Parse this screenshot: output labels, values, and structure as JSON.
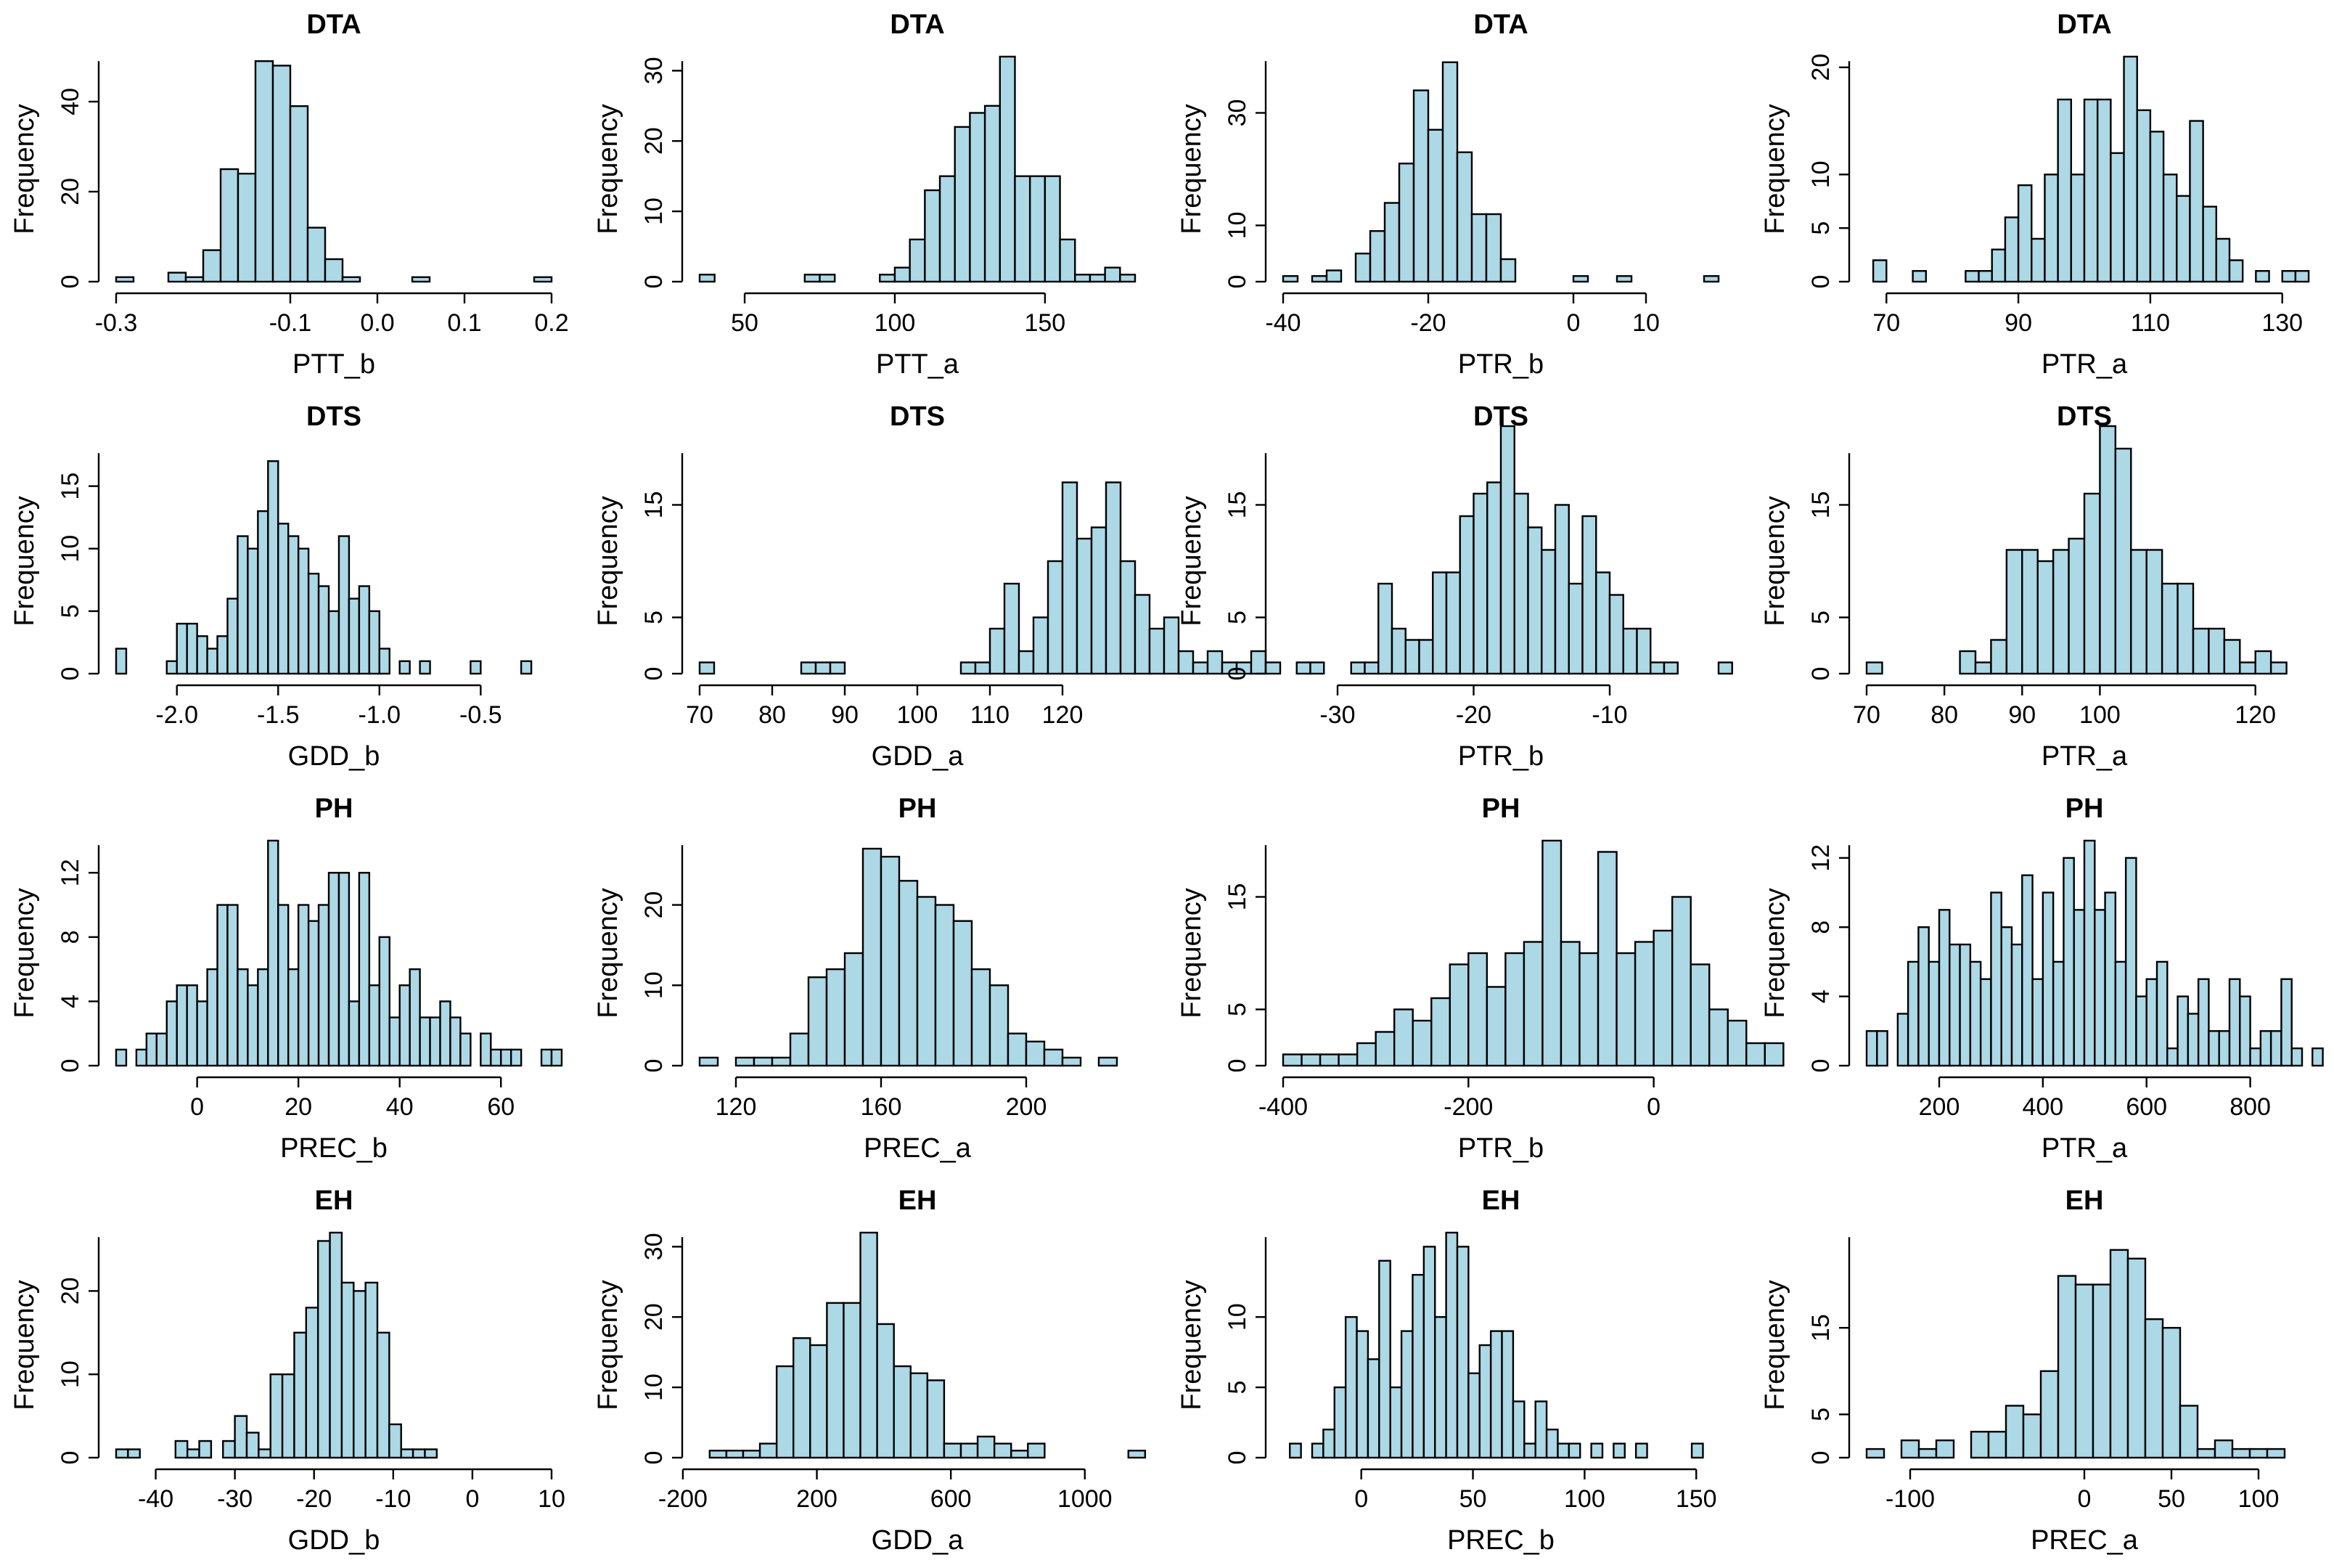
{
  "chart_data": [
    {
      "type": "bar",
      "title": "DTA",
      "xlabel": "PTT_b",
      "ylabel": "Frequency",
      "xlim": [
        -0.3,
        0.2
      ],
      "xticks": [
        "-0.3",
        "-0.1",
        "0.0",
        "0.1",
        "0.2"
      ],
      "xtick_values": [
        -0.3,
        -0.1,
        0.0,
        0.1,
        0.2
      ],
      "ylim": [
        0,
        50
      ],
      "yticks": [
        "0",
        "20",
        "40"
      ],
      "ytick_values": [
        0,
        20,
        40
      ],
      "bins": {
        "start": -0.3,
        "width": 0.02
      },
      "values": [
        1,
        0,
        0,
        2,
        1,
        7,
        25,
        24,
        49,
        48,
        39,
        12,
        5,
        1,
        0,
        0,
        0,
        1,
        0,
        0,
        0,
        0,
        0,
        0,
        1
      ]
    },
    {
      "type": "bar",
      "title": "DTA",
      "xlabel": "PTT_a",
      "ylabel": "Frequency",
      "xlim": [
        35,
        180
      ],
      "xticks": [
        "50",
        "100",
        "150"
      ],
      "xtick_values": [
        50,
        100,
        150
      ],
      "ylim": [
        0,
        32
      ],
      "yticks": [
        "0",
        "10",
        "20",
        "30"
      ],
      "ytick_values": [
        0,
        10,
        20,
        30
      ],
      "bins": {
        "start": 35,
        "width": 5
      },
      "values": [
        1,
        0,
        0,
        0,
        0,
        0,
        0,
        1,
        1,
        0,
        0,
        0,
        1,
        2,
        6,
        13,
        15,
        22,
        24,
        25,
        32,
        15,
        15,
        15,
        6,
        1,
        1,
        2,
        1,
        0
      ]
    },
    {
      "type": "bar",
      "title": "DTA",
      "xlabel": "PTR_b",
      "ylabel": "Frequency",
      "xlim": [
        -40,
        20
      ],
      "xticks": [
        "-40",
        "-20",
        "0",
        "10"
      ],
      "xtick_values": [
        -40,
        -20,
        0,
        10
      ],
      "ylim": [
        0,
        40
      ],
      "yticks": [
        "0",
        "10",
        "30"
      ],
      "ytick_values": [
        0,
        10,
        30
      ],
      "bins": {
        "start": -40,
        "width": 2
      },
      "values": [
        1,
        0,
        1,
        2,
        0,
        5,
        9,
        14,
        21,
        34,
        27,
        39,
        23,
        12,
        12,
        4,
        0,
        0,
        0,
        0,
        1,
        0,
        0,
        1,
        0,
        0,
        0,
        0,
        0,
        1
      ]
    },
    {
      "type": "bar",
      "title": "DTA",
      "xlabel": "PTR_a",
      "ylabel": "Frequency",
      "xlim": [
        67,
        133
      ],
      "xticks": [
        "70",
        "90",
        "110",
        "130"
      ],
      "xtick_values": [
        70,
        90,
        110,
        130
      ],
      "ylim": [
        0,
        21
      ],
      "yticks": [
        "0",
        "5",
        "10",
        "20"
      ],
      "ytick_values": [
        0,
        5,
        10,
        20
      ],
      "bins": {
        "start": 68,
        "width": 2
      },
      "values": [
        2,
        0,
        0,
        1,
        0,
        0,
        0,
        1,
        1,
        3,
        6,
        9,
        4,
        10,
        17,
        10,
        17,
        17,
        12,
        21,
        16,
        14,
        10,
        8,
        15,
        7,
        4,
        2,
        0,
        1,
        0,
        1,
        1,
        0,
        0,
        0
      ]
    },
    {
      "type": "bar",
      "title": "DTS",
      "xlabel": "GDD_b",
      "ylabel": "Frequency",
      "xlim": [
        -2.3,
        -0.15
      ],
      "xticks": [
        "-2.0",
        "-1.5",
        "-1.0",
        "-0.5"
      ],
      "xtick_values": [
        -2.0,
        -1.5,
        -1.0,
        -0.5
      ],
      "ylim": [
        0,
        18
      ],
      "yticks": [
        "0",
        "5",
        "10",
        "15"
      ],
      "ytick_values": [
        0,
        5,
        10,
        15
      ],
      "bins": {
        "start": -2.3,
        "width": 0.05
      },
      "values": [
        2,
        0,
        0,
        0,
        0,
        1,
        4,
        4,
        3,
        2,
        3,
        6,
        11,
        10,
        13,
        17,
        12,
        11,
        10,
        8,
        7,
        5,
        11,
        6,
        7,
        5,
        2,
        0,
        1,
        0,
        1,
        0,
        0,
        0,
        0,
        1,
        0,
        0,
        0,
        0,
        1
      ]
    },
    {
      "type": "bar",
      "title": "DTS",
      "xlabel": "GDD_a",
      "ylabel": "Frequency",
      "xlim": [
        70,
        130
      ],
      "xticks": [
        "70",
        "80",
        "90",
        "100",
        "110",
        "120"
      ],
      "xtick_values": [
        70,
        80,
        90,
        100,
        110,
        120
      ],
      "ylim": [
        0,
        20
      ],
      "yticks": [
        "0",
        "5",
        "15"
      ],
      "ytick_values": [
        0,
        5,
        15
      ],
      "bins": {
        "start": 70,
        "width": 2
      },
      "values": [
        1,
        0,
        0,
        0,
        0,
        0,
        0,
        1,
        1,
        1,
        0,
        0,
        0,
        0,
        0,
        0,
        0,
        0,
        1,
        1,
        4,
        8,
        2,
        5,
        10,
        17,
        12,
        13,
        17,
        10,
        7,
        4,
        5,
        2,
        1,
        2,
        1,
        1,
        2,
        1
      ]
    },
    {
      "type": "bar",
      "title": "DTS",
      "xlabel": "PTR_b",
      "ylabel": "Frequency",
      "xlim": [
        -34,
        -2
      ],
      "xticks": [
        "-30",
        "-20",
        "-10"
      ],
      "xtick_values": [
        -30,
        -20,
        -10
      ],
      "ylim": [
        0,
        20
      ],
      "yticks": [
        "0",
        "5",
        "15"
      ],
      "ytick_values": [
        0,
        5,
        15
      ],
      "bins": {
        "start": -33,
        "width": 1
      },
      "values": [
        1,
        1,
        0,
        0,
        1,
        1,
        8,
        4,
        3,
        3,
        9,
        9,
        14,
        16,
        17,
        22,
        16,
        13,
        11,
        15,
        8,
        14,
        9,
        7,
        4,
        4,
        1,
        1,
        0,
        0,
        0,
        1
      ]
    },
    {
      "type": "bar",
      "title": "DTS",
      "xlabel": "PTR_a",
      "ylabel": "Frequency",
      "xlim": [
        70,
        126
      ],
      "xticks": [
        "70",
        "80",
        "90",
        "100",
        "120"
      ],
      "xtick_values": [
        70,
        80,
        90,
        100,
        120
      ],
      "ylim": [
        0,
        20
      ],
      "yticks": [
        "0",
        "5",
        "15"
      ],
      "ytick_values": [
        0,
        5,
        15
      ],
      "bins": {
        "start": 70,
        "width": 2
      },
      "values": [
        1,
        0,
        0,
        0,
        0,
        0,
        2,
        1,
        3,
        11,
        11,
        10,
        11,
        12,
        16,
        22,
        20,
        11,
        11,
        8,
        8,
        4,
        4,
        3,
        1,
        2,
        1
      ]
    },
    {
      "type": "bar",
      "title": "PH",
      "xlabel": "PREC_b",
      "ylabel": "Frequency",
      "xlim": [
        -16,
        70
      ],
      "xticks": [
        "0",
        "20",
        "40",
        "60"
      ],
      "xtick_values": [
        0,
        20,
        40,
        60
      ],
      "ylim": [
        0,
        14
      ],
      "yticks": [
        "0",
        "4",
        "8",
        "12"
      ],
      "ytick_values": [
        0,
        4,
        8,
        12
      ],
      "bins": {
        "start": -16,
        "width": 2
      },
      "values": [
        1,
        0,
        1,
        2,
        2,
        4,
        5,
        5,
        4,
        6,
        10,
        10,
        6,
        5,
        6,
        14,
        10,
        6,
        10,
        9,
        10,
        12,
        12,
        4,
        12,
        5,
        8,
        3,
        5,
        6,
        3,
        3,
        4,
        3,
        2,
        0,
        2,
        1,
        1,
        1,
        0,
        0,
        1,
        1
      ]
    },
    {
      "type": "bar",
      "title": "PH",
      "xlabel": "PREC_a",
      "ylabel": "Frequency",
      "xlim": [
        110,
        230
      ],
      "xticks": [
        "120",
        "160",
        "200"
      ],
      "xtick_values": [
        120,
        160,
        200
      ],
      "ylim": [
        0,
        28
      ],
      "yticks": [
        "0",
        "10",
        "20"
      ],
      "ytick_values": [
        0,
        10,
        20
      ],
      "bins": {
        "start": 110,
        "width": 5
      },
      "values": [
        1,
        0,
        1,
        1,
        1,
        4,
        11,
        12,
        14,
        27,
        26,
        23,
        21,
        20,
        18,
        12,
        10,
        4,
        3,
        2,
        1,
        0,
        1
      ]
    },
    {
      "type": "bar",
      "title": "PH",
      "xlabel": "PTR_b",
      "ylabel": "Frequency",
      "xlim": [
        -400,
        70
      ],
      "xticks": [
        "-400",
        "-200",
        "0"
      ],
      "xtick_values": [
        -400,
        -200,
        0
      ],
      "ylim": [
        0,
        20
      ],
      "yticks": [
        "0",
        "5",
        "15"
      ],
      "ytick_values": [
        0,
        5,
        15
      ],
      "bins": {
        "start": -400,
        "width": 20
      },
      "values": [
        1,
        1,
        1,
        1,
        2,
        3,
        5,
        4,
        6,
        9,
        10,
        7,
        10,
        11,
        20,
        11,
        10,
        19,
        10,
        11,
        12,
        15,
        9,
        5,
        4,
        2,
        2
      ]
    },
    {
      "type": "bar",
      "title": "PH",
      "xlabel": "PTR_a",
      "ylabel": "Frequency",
      "xlim": [
        60,
        900
      ],
      "xticks": [
        "200",
        "400",
        "600",
        "800"
      ],
      "xtick_values": [
        200,
        400,
        600,
        800
      ],
      "ylim": [
        0,
        13
      ],
      "yticks": [
        "0",
        "4",
        "8",
        "12"
      ],
      "ytick_values": [
        0,
        4,
        8,
        12
      ],
      "bins": {
        "start": 60,
        "width": 20
      },
      "values": [
        2,
        2,
        0,
        3,
        6,
        8,
        6,
        9,
        7,
        7,
        6,
        5,
        10,
        8,
        7,
        11,
        5,
        10,
        6,
        12,
        9,
        13,
        9,
        10,
        6,
        12,
        4,
        5,
        6,
        1,
        4,
        3,
        5,
        2,
        2,
        5,
        4,
        1,
        2,
        2,
        5,
        1,
        0,
        1
      ]
    },
    {
      "type": "bar",
      "title": "EH",
      "xlabel": "GDD_b",
      "ylabel": "Frequency",
      "xlim": [
        -45,
        10
      ],
      "xticks": [
        "-40",
        "-30",
        "-20",
        "-10",
        "0",
        "10"
      ],
      "xtick_values": [
        -40,
        -30,
        -20,
        -10,
        0,
        10
      ],
      "ylim": [
        0,
        27
      ],
      "yticks": [
        "0",
        "10",
        "20"
      ],
      "ytick_values": [
        0,
        10,
        20
      ],
      "bins": {
        "start": -45,
        "width": 1.5
      },
      "values": [
        1,
        1,
        0,
        0,
        0,
        2,
        1,
        2,
        0,
        2,
        5,
        3,
        1,
        10,
        10,
        15,
        18,
        26,
        27,
        21,
        20,
        21,
        15,
        4,
        1,
        1,
        1
      ]
    },
    {
      "type": "bar",
      "title": "EH",
      "xlabel": "GDD_a",
      "ylabel": "Frequency",
      "xlim": [
        -150,
        1150
      ],
      "xticks": [
        "-200",
        "200",
        "600",
        "1000"
      ],
      "xtick_values": [
        -200,
        200,
        600,
        1000
      ],
      "ylim": [
        0,
        32
      ],
      "yticks": [
        "0",
        "10",
        "20",
        "30"
      ],
      "ytick_values": [
        0,
        10,
        20,
        30
      ],
      "bins": {
        "start": -120,
        "width": 50
      },
      "values": [
        1,
        1,
        1,
        2,
        13,
        17,
        16,
        22,
        22,
        32,
        19,
        13,
        12,
        11,
        2,
        2,
        3,
        2,
        1,
        2,
        0,
        0,
        0,
        0,
        0,
        1
      ]
    },
    {
      "type": "bar",
      "title": "EH",
      "xlabel": "PREC_b",
      "ylabel": "Frequency",
      "xlim": [
        -35,
        160
      ],
      "xticks": [
        "0",
        "50",
        "100",
        "150"
      ],
      "xtick_values": [
        0,
        50,
        100,
        150
      ],
      "ylim": [
        0,
        16
      ],
      "yticks": [
        "0",
        "5",
        "10"
      ],
      "ytick_values": [
        0,
        5,
        10
      ],
      "bins": {
        "start": -32,
        "width": 5
      },
      "values": [
        1,
        0,
        1,
        2,
        5,
        10,
        9,
        7,
        14,
        5,
        9,
        13,
        15,
        10,
        16,
        15,
        6,
        8,
        9,
        9,
        4,
        1,
        4,
        2,
        1,
        1,
        0,
        1,
        0,
        1,
        0,
        1,
        0,
        0,
        0,
        0,
        1
      ]
    },
    {
      "type": "bar",
      "title": "EH",
      "xlabel": "PREC_a",
      "ylabel": "Frequency",
      "xlim": [
        -125,
        125
      ],
      "xticks": [
        "-100",
        "0",
        "50",
        "100"
      ],
      "xtick_values": [
        -100,
        0,
        50,
        100
      ],
      "ylim": [
        0,
        26
      ],
      "yticks": [
        "0",
        "5",
        "15"
      ],
      "ytick_values": [
        0,
        5,
        15
      ],
      "bins": {
        "start": -125,
        "width": 10
      },
      "values": [
        1,
        0,
        2,
        1,
        2,
        0,
        3,
        3,
        6,
        5,
        10,
        21,
        20,
        20,
        24,
        23,
        16,
        15,
        6,
        1,
        2,
        1,
        1,
        1
      ]
    }
  ]
}
